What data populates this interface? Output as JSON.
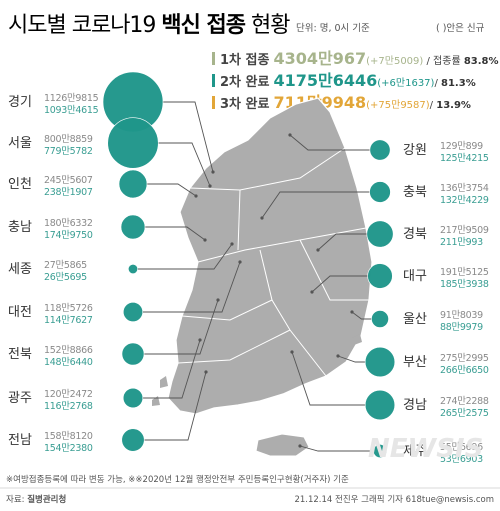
{
  "header": {
    "title_a": "시도별 코로나19 ",
    "title_b": "백신 접종",
    "title_c": " 현황",
    "unit": "단위: 명, 0시 기준",
    "note": "( )안은 신규"
  },
  "stats": [
    {
      "label": "1차 접종",
      "value": "4304만967",
      "new": "(+7만5009)",
      "rate_label": " / 접종률 ",
      "rate": "83.8%",
      "color": "#a7b48c"
    },
    {
      "label": "2차 완료",
      "value": "4175만6446",
      "new": "(+6만1637)",
      "rate_label": "/ ",
      "rate": "81.3%",
      "color": "#1f968a"
    },
    {
      "label": "3차 완료",
      "value": "711만9948",
      "new": "(+75만9587)",
      "rate_label": "/ ",
      "rate": "13.9%",
      "color": "#e2a638"
    }
  ],
  "colors": {
    "bubble": "#1f968a",
    "map": "#adadad",
    "map_border": "#ffffff",
    "line": "#555555"
  },
  "chart_data": {
    "type": "bubble-map",
    "series": [
      {
        "name": "1차 접종"
      },
      {
        "name": "2차 완료"
      }
    ],
    "regions": [
      {
        "name": "경기",
        "first": "1126만9815",
        "second": "1093만4615",
        "first_n": 11269815,
        "second_n": 10934615
      },
      {
        "name": "서울",
        "first": "800만8859",
        "second": "779만5782",
        "first_n": 8008859,
        "second_n": 7795782
      },
      {
        "name": "인천",
        "first": "245만5607",
        "second": "238만1907",
        "first_n": 2455607,
        "second_n": 2381907
      },
      {
        "name": "충남",
        "first": "180만6332",
        "second": "174만9750",
        "first_n": 1806332,
        "second_n": 1749750
      },
      {
        "name": "세종",
        "first": "27만5865",
        "second": "26만5695",
        "first_n": 275865,
        "second_n": 265695
      },
      {
        "name": "대전",
        "first": "118만5726",
        "second": "114만7627",
        "first_n": 1185726,
        "second_n": 1147627
      },
      {
        "name": "전북",
        "first": "152만8866",
        "second": "148만6440",
        "first_n": 1528866,
        "second_n": 1486440
      },
      {
        "name": "광주",
        "first": "120만2472",
        "second": "116만2768",
        "first_n": 1202472,
        "second_n": 1162768
      },
      {
        "name": "전남",
        "first": "158만8120",
        "second": "154만2380",
        "first_n": 1588120,
        "second_n": 1542380
      },
      {
        "name": "강원",
        "first": "129만899",
        "second": "125만4215",
        "first_n": 1290899,
        "second_n": 1254215
      },
      {
        "name": "충북",
        "first": "136만3754",
        "second": "132만4229",
        "first_n": 1363754,
        "second_n": 1324229
      },
      {
        "name": "경북",
        "first": "217만9509",
        "second": "211만993",
        "first_n": 2179509,
        "second_n": 2110993
      },
      {
        "name": "대구",
        "first": "191만5125",
        "second": "185만3938",
        "first_n": 1915125,
        "second_n": 1853938
      },
      {
        "name": "울산",
        "first": "91만8039",
        "second": "88만9979",
        "first_n": 918039,
        "second_n": 889979
      },
      {
        "name": "부산",
        "first": "275만2995",
        "second": "266만6650",
        "first_n": 2752995,
        "second_n": 2666650
      },
      {
        "name": "경남",
        "first": "274만2288",
        "second": "265만2575",
        "first_n": 2742288,
        "second_n": 2652575
      },
      {
        "name": "제주",
        "first": "55만6696",
        "second": "53만6903",
        "first_n": 556696,
        "second_n": 536903
      }
    ]
  },
  "footer": {
    "note": "※여방접종등록에 따라 변동 가능, ※※2020년 12월 행정안전부 주민등록인구현황(거주자) 기준",
    "source_label": "자료: ",
    "source": "질병관리청",
    "credit": "21.12.14 전진우 그래픽 기자 618tue@newsis.com",
    "watermark": "NEWSIS"
  }
}
